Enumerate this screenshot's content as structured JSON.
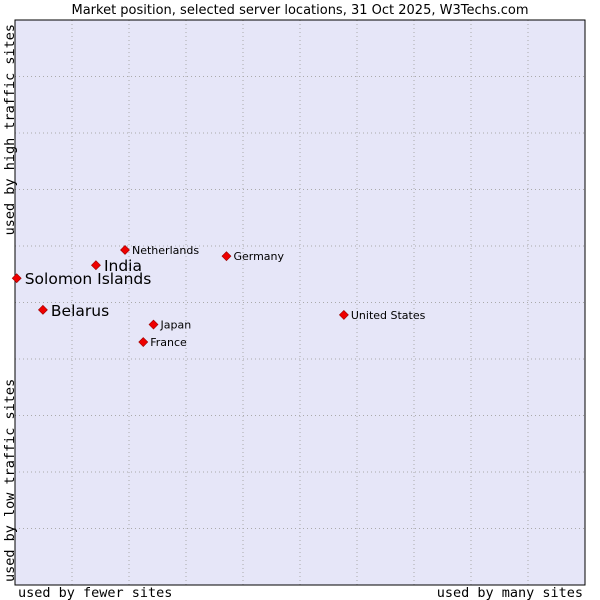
{
  "chart_data": {
    "type": "scatter",
    "title": "Market position, selected server locations, 31 Oct 2025, W3Techs.com",
    "xlabel_left": "used by fewer sites",
    "xlabel_right": "used by many sites",
    "ylabel_bottom": "used by low traffic sites",
    "ylabel_top": "used by high traffic sites",
    "xlim": [
      0,
      100
    ],
    "ylim": [
      0,
      100
    ],
    "grid": true,
    "colors": {
      "plot_background": "#e6e6f8",
      "grid": "#aaaaaa",
      "marker": "#ee0000",
      "marker_edge": "#990000",
      "frame": "#000000"
    },
    "points": [
      {
        "name": "Netherlands",
        "x": 19.3,
        "y": 59.3,
        "emphasis": false
      },
      {
        "name": "India",
        "x": 14.2,
        "y": 56.6,
        "emphasis": true
      },
      {
        "name": "Germany",
        "x": 37.1,
        "y": 58.2,
        "emphasis": false
      },
      {
        "name": "Solomon Islands",
        "x": 0.3,
        "y": 54.3,
        "emphasis": true
      },
      {
        "name": "Belarus",
        "x": 4.9,
        "y": 48.7,
        "emphasis": true
      },
      {
        "name": "United States",
        "x": 57.7,
        "y": 47.8,
        "emphasis": false
      },
      {
        "name": "Japan",
        "x": 24.3,
        "y": 46.1,
        "emphasis": false
      },
      {
        "name": "France",
        "x": 22.5,
        "y": 43.0,
        "emphasis": false
      }
    ]
  }
}
